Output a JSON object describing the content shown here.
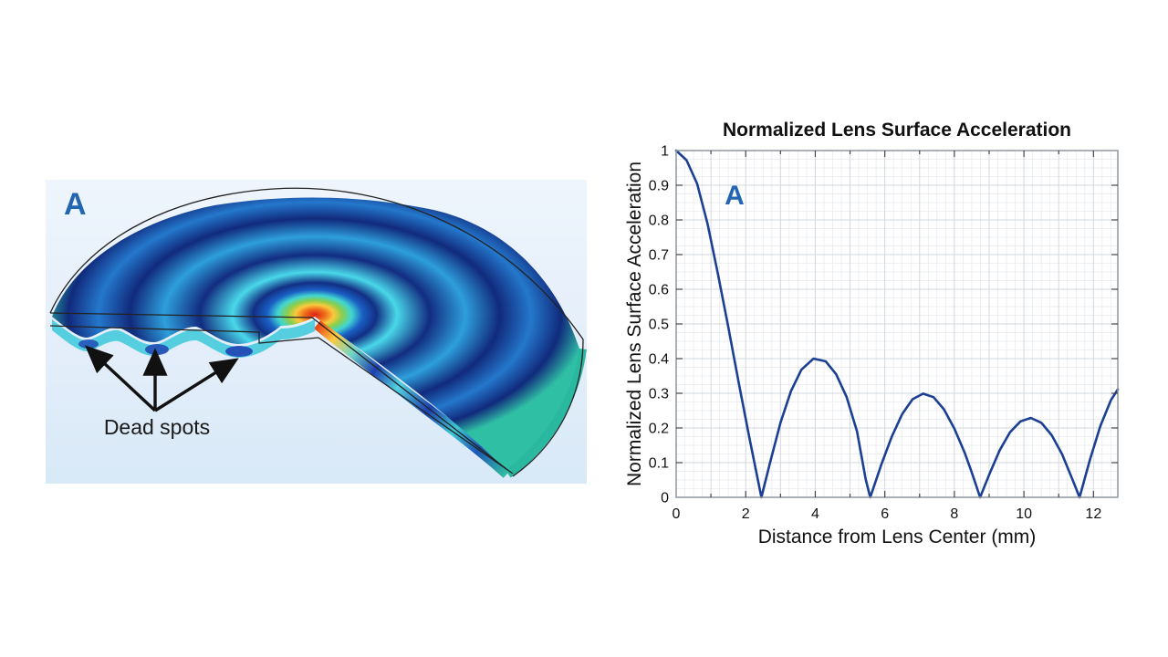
{
  "figure": {
    "panel_left": {
      "label": "A",
      "label_color": "#2265b1",
      "annotation": "Dead spots",
      "description_colors": {
        "background_top": "#eef5fc",
        "background_bottom": "#d8e9f7",
        "peak_red": "#dd2016",
        "node_navy": "#122f83",
        "antinode_cyan": "#49d8ea",
        "rim_teal": "#2fbfa5",
        "wireframe": "#222222",
        "arrow": "#111111"
      }
    },
    "chart": {
      "panel_label": "A",
      "panel_label_color": "#2364b3",
      "title": "Normalized Lens Surface Acceleration",
      "xlabel": "Distance from Lens Center (mm)",
      "ylabel": "Normalized Lens Surface Acceleration"
    }
  },
  "chart_data": {
    "type": "line",
    "title": "Normalized Lens Surface Acceleration",
    "xlabel": "Distance from Lens Center (mm)",
    "ylabel": "Normalized Lens Surface Acceleration",
    "xlim": [
      0,
      12.7
    ],
    "ylim": [
      0,
      1
    ],
    "xticks": [
      0,
      2,
      4,
      6,
      8,
      10,
      12
    ],
    "xtick_labels": [
      "0",
      "2",
      "4",
      "6",
      "8",
      "10",
      "12"
    ],
    "xticks_minor_step": 1,
    "yticks": [
      0,
      0.1,
      0.2,
      0.3,
      0.4,
      0.5,
      0.6,
      0.7,
      0.8,
      0.9,
      1
    ],
    "ytick_labels": [
      "0",
      "0.1",
      "0.2",
      "0.3",
      "0.4",
      "0.5",
      "0.6",
      "0.7",
      "0.8",
      "0.9",
      "1"
    ],
    "grid": "minor-mesh",
    "minor_grid_x_step": 0.25,
    "minor_grid_y_step": 0.025,
    "submajor_grid_x_step": 1,
    "submajor_grid_y_step": 0.1,
    "legend": "none",
    "colors": {
      "line": "#1b3f94",
      "frame": "#8f969e",
      "grid_minor": "#e7eaee",
      "grid_major": "#d2d8de",
      "tick": "#444444",
      "text": "#111111"
    },
    "curve_zeros_mm": [
      2.45,
      5.58,
      8.74,
      11.6
    ],
    "curve_peaks": [
      [
        3.95,
        0.4
      ],
      [
        7.1,
        0.3
      ],
      [
        10.2,
        0.23
      ]
    ],
    "curve_endpoint": [
      12.7,
      0.31
    ],
    "series": [
      {
        "name": "Normalized lens surface acceleration",
        "points": [
          [
            0,
            1
          ],
          [
            0.3,
            0.972
          ],
          [
            0.6,
            0.905
          ],
          [
            0.9,
            0.79
          ],
          [
            1.2,
            0.645
          ],
          [
            1.5,
            0.49
          ],
          [
            1.8,
            0.33
          ],
          [
            2.1,
            0.175
          ],
          [
            2.45,
            0
          ],
          [
            2.7,
            0.1
          ],
          [
            3,
            0.215
          ],
          [
            3.3,
            0.306
          ],
          [
            3.6,
            0.368
          ],
          [
            3.95,
            0.4
          ],
          [
            4.3,
            0.392
          ],
          [
            4.6,
            0.355
          ],
          [
            4.9,
            0.29
          ],
          [
            5.2,
            0.19
          ],
          [
            5.45,
            0.052
          ],
          [
            5.58,
            0
          ],
          [
            5.9,
            0.095
          ],
          [
            6.2,
            0.175
          ],
          [
            6.5,
            0.24
          ],
          [
            6.8,
            0.283
          ],
          [
            7.1,
            0.299
          ],
          [
            7.4,
            0.289
          ],
          [
            7.7,
            0.254
          ],
          [
            8,
            0.198
          ],
          [
            8.3,
            0.128
          ],
          [
            8.5,
            0.072
          ],
          [
            8.74,
            0
          ],
          [
            9,
            0.065
          ],
          [
            9.3,
            0.135
          ],
          [
            9.6,
            0.188
          ],
          [
            9.9,
            0.219
          ],
          [
            10.2,
            0.229
          ],
          [
            10.5,
            0.215
          ],
          [
            10.8,
            0.179
          ],
          [
            11.1,
            0.124
          ],
          [
            11.4,
            0.05
          ],
          [
            11.6,
            0
          ],
          [
            11.9,
            0.109
          ],
          [
            12.2,
            0.206
          ],
          [
            12.5,
            0.28
          ],
          [
            12.7,
            0.311
          ]
        ]
      }
    ]
  }
}
